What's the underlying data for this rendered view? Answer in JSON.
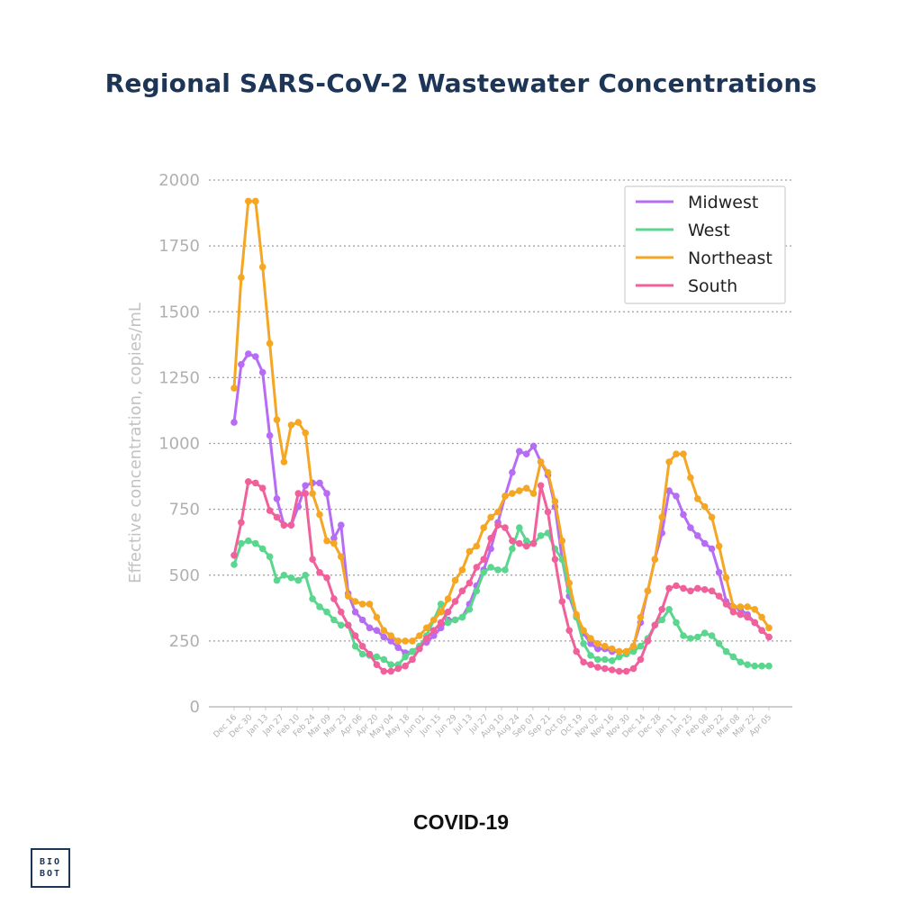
{
  "title": "Regional SARS-CoV-2 Wastewater Concentrations",
  "footer_title": "COVID-19",
  "logo": {
    "line1": "BIO",
    "line2": "BOT"
  },
  "chart_data": {
    "type": "line",
    "title": "Regional SARS-CoV-2 Wastewater Concentrations",
    "xlabel": "",
    "ylabel": "Effective concentration, copies/mL",
    "ylim": [
      0,
      2000
    ],
    "yticks": [
      0,
      250,
      500,
      750,
      1000,
      1250,
      1500,
      1750,
      2000
    ],
    "grid": "horizontal dotted",
    "legend_position": "top-right",
    "x_tick_labels": [
      "Dec 16",
      "Dec 30",
      "Jan 13",
      "Jan 27",
      "Feb 10",
      "Feb 24",
      "Mar 09",
      "Mar 23",
      "Apr 06",
      "Apr 20",
      "May 04",
      "May 18",
      "Jun 01",
      "Jun 15",
      "Jun 29",
      "Jul 13",
      "Jul 27",
      "Aug 10",
      "Aug 24",
      "Sep 07",
      "Sep 21",
      "Oct 05",
      "Oct 19",
      "Nov 02",
      "Nov 16",
      "Nov 30",
      "Dec 14",
      "Dec 28",
      "Jan 11",
      "Jan 25",
      "Feb 08",
      "Feb 22",
      "Mar 08",
      "Mar 22",
      "Apr 05"
    ],
    "series": [
      {
        "name": "Midwest",
        "color": "#b66cf5",
        "values": [
          1080,
          1300,
          1340,
          1330,
          1270,
          1030,
          790,
          690,
          690,
          760,
          840,
          850,
          850,
          810,
          640,
          690,
          430,
          360,
          330,
          300,
          290,
          265,
          250,
          225,
          205,
          210,
          230,
          245,
          270,
          300,
          330,
          330,
          340,
          390,
          460,
          520,
          600,
          700,
          800,
          890,
          970,
          960,
          990,
          930,
          880,
          760,
          560,
          420,
          340,
          280,
          240,
          220,
          220,
          210,
          210,
          210,
          230,
          320,
          440,
          560,
          660,
          820,
          800,
          730,
          680,
          650,
          620,
          600,
          510,
          400,
          380,
          370,
          350,
          320,
          290,
          265
        ]
      },
      {
        "name": "West",
        "color": "#5bd68f",
        "values": [
          540,
          620,
          630,
          620,
          600,
          570,
          480,
          500,
          490,
          480,
          500,
          410,
          380,
          360,
          330,
          310,
          310,
          230,
          200,
          195,
          190,
          180,
          160,
          160,
          190,
          210,
          230,
          270,
          330,
          390,
          320,
          330,
          340,
          370,
          440,
          510,
          530,
          520,
          520,
          600,
          680,
          630,
          620,
          650,
          660,
          600,
          560,
          440,
          340,
          240,
          195,
          180,
          180,
          175,
          190,
          200,
          210,
          230,
          260,
          310,
          330,
          370,
          320,
          270,
          260,
          265,
          280,
          270,
          240,
          210,
          190,
          170,
          160,
          155,
          155,
          155
        ]
      },
      {
        "name": "Northeast",
        "color": "#f5a623",
        "values": [
          1210,
          1630,
          1920,
          1920,
          1670,
          1380,
          1090,
          930,
          1070,
          1080,
          1040,
          810,
          730,
          630,
          620,
          570,
          420,
          400,
          390,
          390,
          340,
          290,
          270,
          250,
          250,
          250,
          270,
          300,
          330,
          360,
          410,
          480,
          520,
          590,
          610,
          680,
          720,
          740,
          800,
          810,
          820,
          830,
          810,
          930,
          890,
          780,
          630,
          470,
          350,
          290,
          260,
          240,
          230,
          220,
          210,
          210,
          230,
          340,
          440,
          560,
          720,
          930,
          960,
          960,
          870,
          790,
          760,
          720,
          610,
          490,
          380,
          380,
          380,
          370,
          340,
          300
        ]
      },
      {
        "name": "South",
        "color": "#f0609b",
        "values": [
          575,
          700,
          855,
          850,
          830,
          745,
          720,
          690,
          690,
          810,
          810,
          560,
          510,
          490,
          410,
          360,
          310,
          270,
          230,
          200,
          160,
          135,
          135,
          145,
          155,
          180,
          220,
          260,
          290,
          320,
          360,
          400,
          440,
          470,
          530,
          560,
          640,
          690,
          680,
          630,
          620,
          610,
          620,
          840,
          740,
          560,
          400,
          290,
          210,
          170,
          160,
          150,
          145,
          140,
          135,
          135,
          145,
          180,
          250,
          310,
          370,
          450,
          460,
          450,
          440,
          450,
          445,
          440,
          420,
          390,
          360,
          350,
          340,
          320,
          290,
          265
        ]
      }
    ]
  }
}
